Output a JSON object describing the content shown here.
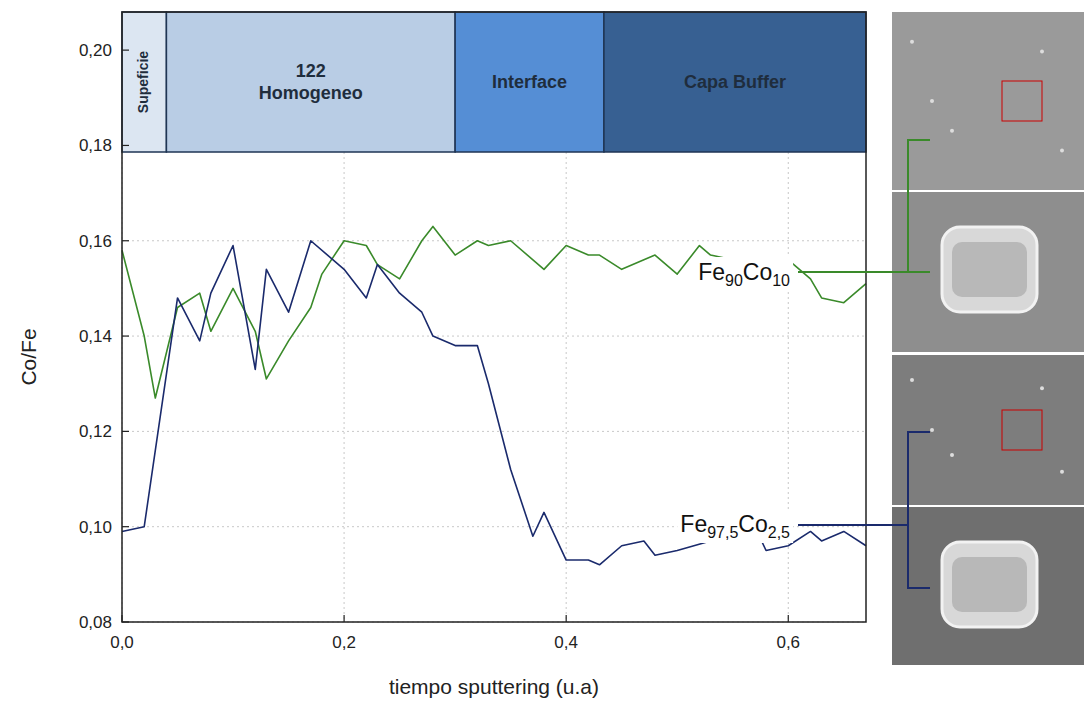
{
  "chart_data": {
    "type": "line",
    "xlabel": "tiempo sputtering (u.a)",
    "ylabel": "Co/Fe",
    "xlim": [
      0,
      0.67
    ],
    "ylim": [
      0.08,
      0.208
    ],
    "xticks": [
      {
        "value": 0,
        "label": "0,0"
      },
      {
        "value": 0.2,
        "label": "0,2"
      },
      {
        "value": 0.4,
        "label": "0,4"
      },
      {
        "value": 0.6,
        "label": "0,6"
      }
    ],
    "yticks": [
      {
        "value": 0.08,
        "label": "0,08"
      },
      {
        "value": 0.1,
        "label": "0,10"
      },
      {
        "value": 0.12,
        "label": "0,12"
      },
      {
        "value": 0.14,
        "label": "0,14"
      },
      {
        "value": 0.16,
        "label": "0,16"
      },
      {
        "value": 0.18,
        "label": "0,18"
      },
      {
        "value": 0.2,
        "label": "0,20"
      }
    ],
    "grid": true,
    "legend": "right",
    "regions": [
      {
        "label": "Supeficie",
        "start": 0,
        "end": 0.04,
        "color": "#dce6f2"
      },
      {
        "label": "122 Homogeneo",
        "start": 0.04,
        "end": 0.3,
        "color": "#b9cde5"
      },
      {
        "label": "Interface",
        "start": 0.3,
        "end": 0.434,
        "color": "#558ed5"
      },
      {
        "label": "Capa Buffer",
        "start": 0.434,
        "end": 0.67,
        "color": "#376092"
      }
    ],
    "series": [
      {
        "name": "Fe90Co10",
        "color": "#3a8a2a",
        "x": [
          0,
          0.02,
          0.03,
          0.05,
          0.07,
          0.08,
          0.1,
          0.12,
          0.13,
          0.15,
          0.17,
          0.18,
          0.2,
          0.22,
          0.23,
          0.25,
          0.27,
          0.28,
          0.3,
          0.32,
          0.33,
          0.35,
          0.38,
          0.4,
          0.42,
          0.43,
          0.45,
          0.48,
          0.5,
          0.52,
          0.53,
          0.55,
          0.58,
          0.6,
          0.62,
          0.63,
          0.65,
          0.67
        ],
        "values": [
          0.158,
          0.14,
          0.127,
          0.146,
          0.149,
          0.141,
          0.15,
          0.141,
          0.131,
          0.139,
          0.146,
          0.153,
          0.16,
          0.159,
          0.155,
          0.152,
          0.16,
          0.163,
          0.157,
          0.16,
          0.159,
          0.16,
          0.154,
          0.159,
          0.157,
          0.157,
          0.154,
          0.157,
          0.153,
          0.159,
          0.157,
          0.156,
          0.153,
          0.156,
          0.152,
          0.148,
          0.147,
          0.151
        ]
      },
      {
        "name": "Fe97,5Co2,5",
        "color": "#1a2a6c",
        "x": [
          0,
          0.02,
          0.05,
          0.07,
          0.08,
          0.1,
          0.12,
          0.13,
          0.15,
          0.17,
          0.2,
          0.22,
          0.23,
          0.25,
          0.27,
          0.28,
          0.3,
          0.32,
          0.33,
          0.35,
          0.37,
          0.38,
          0.4,
          0.42,
          0.43,
          0.45,
          0.47,
          0.48,
          0.5,
          0.53,
          0.55,
          0.57,
          0.58,
          0.6,
          0.62,
          0.63,
          0.65,
          0.67
        ],
        "values": [
          0.099,
          0.1,
          0.148,
          0.139,
          0.149,
          0.159,
          0.133,
          0.154,
          0.145,
          0.16,
          0.154,
          0.148,
          0.155,
          0.149,
          0.145,
          0.14,
          0.138,
          0.138,
          0.13,
          0.112,
          0.098,
          0.103,
          0.093,
          0.093,
          0.092,
          0.096,
          0.097,
          0.094,
          0.095,
          0.097,
          0.097,
          0.1,
          0.095,
          0.096,
          0.099,
          0.097,
          0.099,
          0.096
        ]
      }
    ]
  }
}
